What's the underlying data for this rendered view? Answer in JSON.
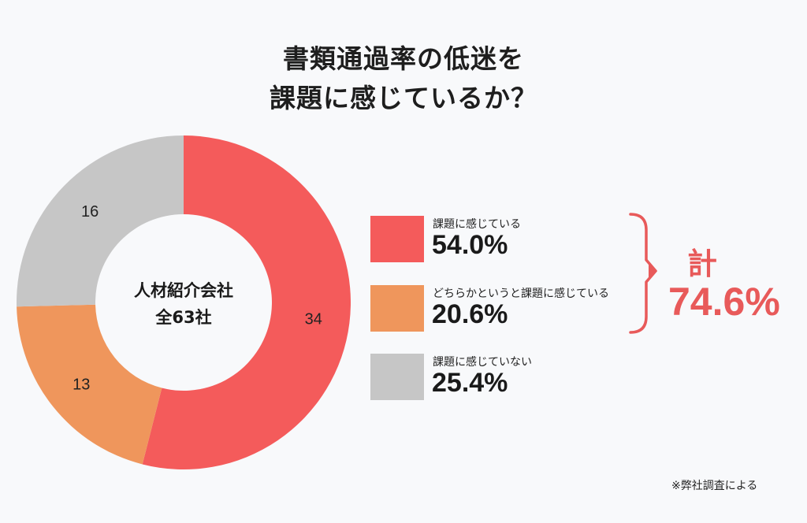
{
  "title": {
    "line1": "書類通過率の低迷を",
    "line2": "課題に感じているか？"
  },
  "chart_data": {
    "type": "pie",
    "center_label": {
      "line1": "人材紹介会社",
      "line2": "全63社"
    },
    "slices": [
      {
        "label": "課題に感じている",
        "value": 34,
        "percent": "54.0%",
        "color": "#f45b5b"
      },
      {
        "label": "どちらかというと課題に感じている",
        "value": 13,
        "percent": "20.6%",
        "color": "#ef965c"
      },
      {
        "label": "課題に感じていない",
        "value": 16,
        "percent": "25.4%",
        "color": "#c6c6c6"
      }
    ],
    "total": {
      "label": "計",
      "value": "74.6%",
      "color": "#e85a5a"
    },
    "legend_placement": "right"
  },
  "footnote": "※弊社調査による"
}
